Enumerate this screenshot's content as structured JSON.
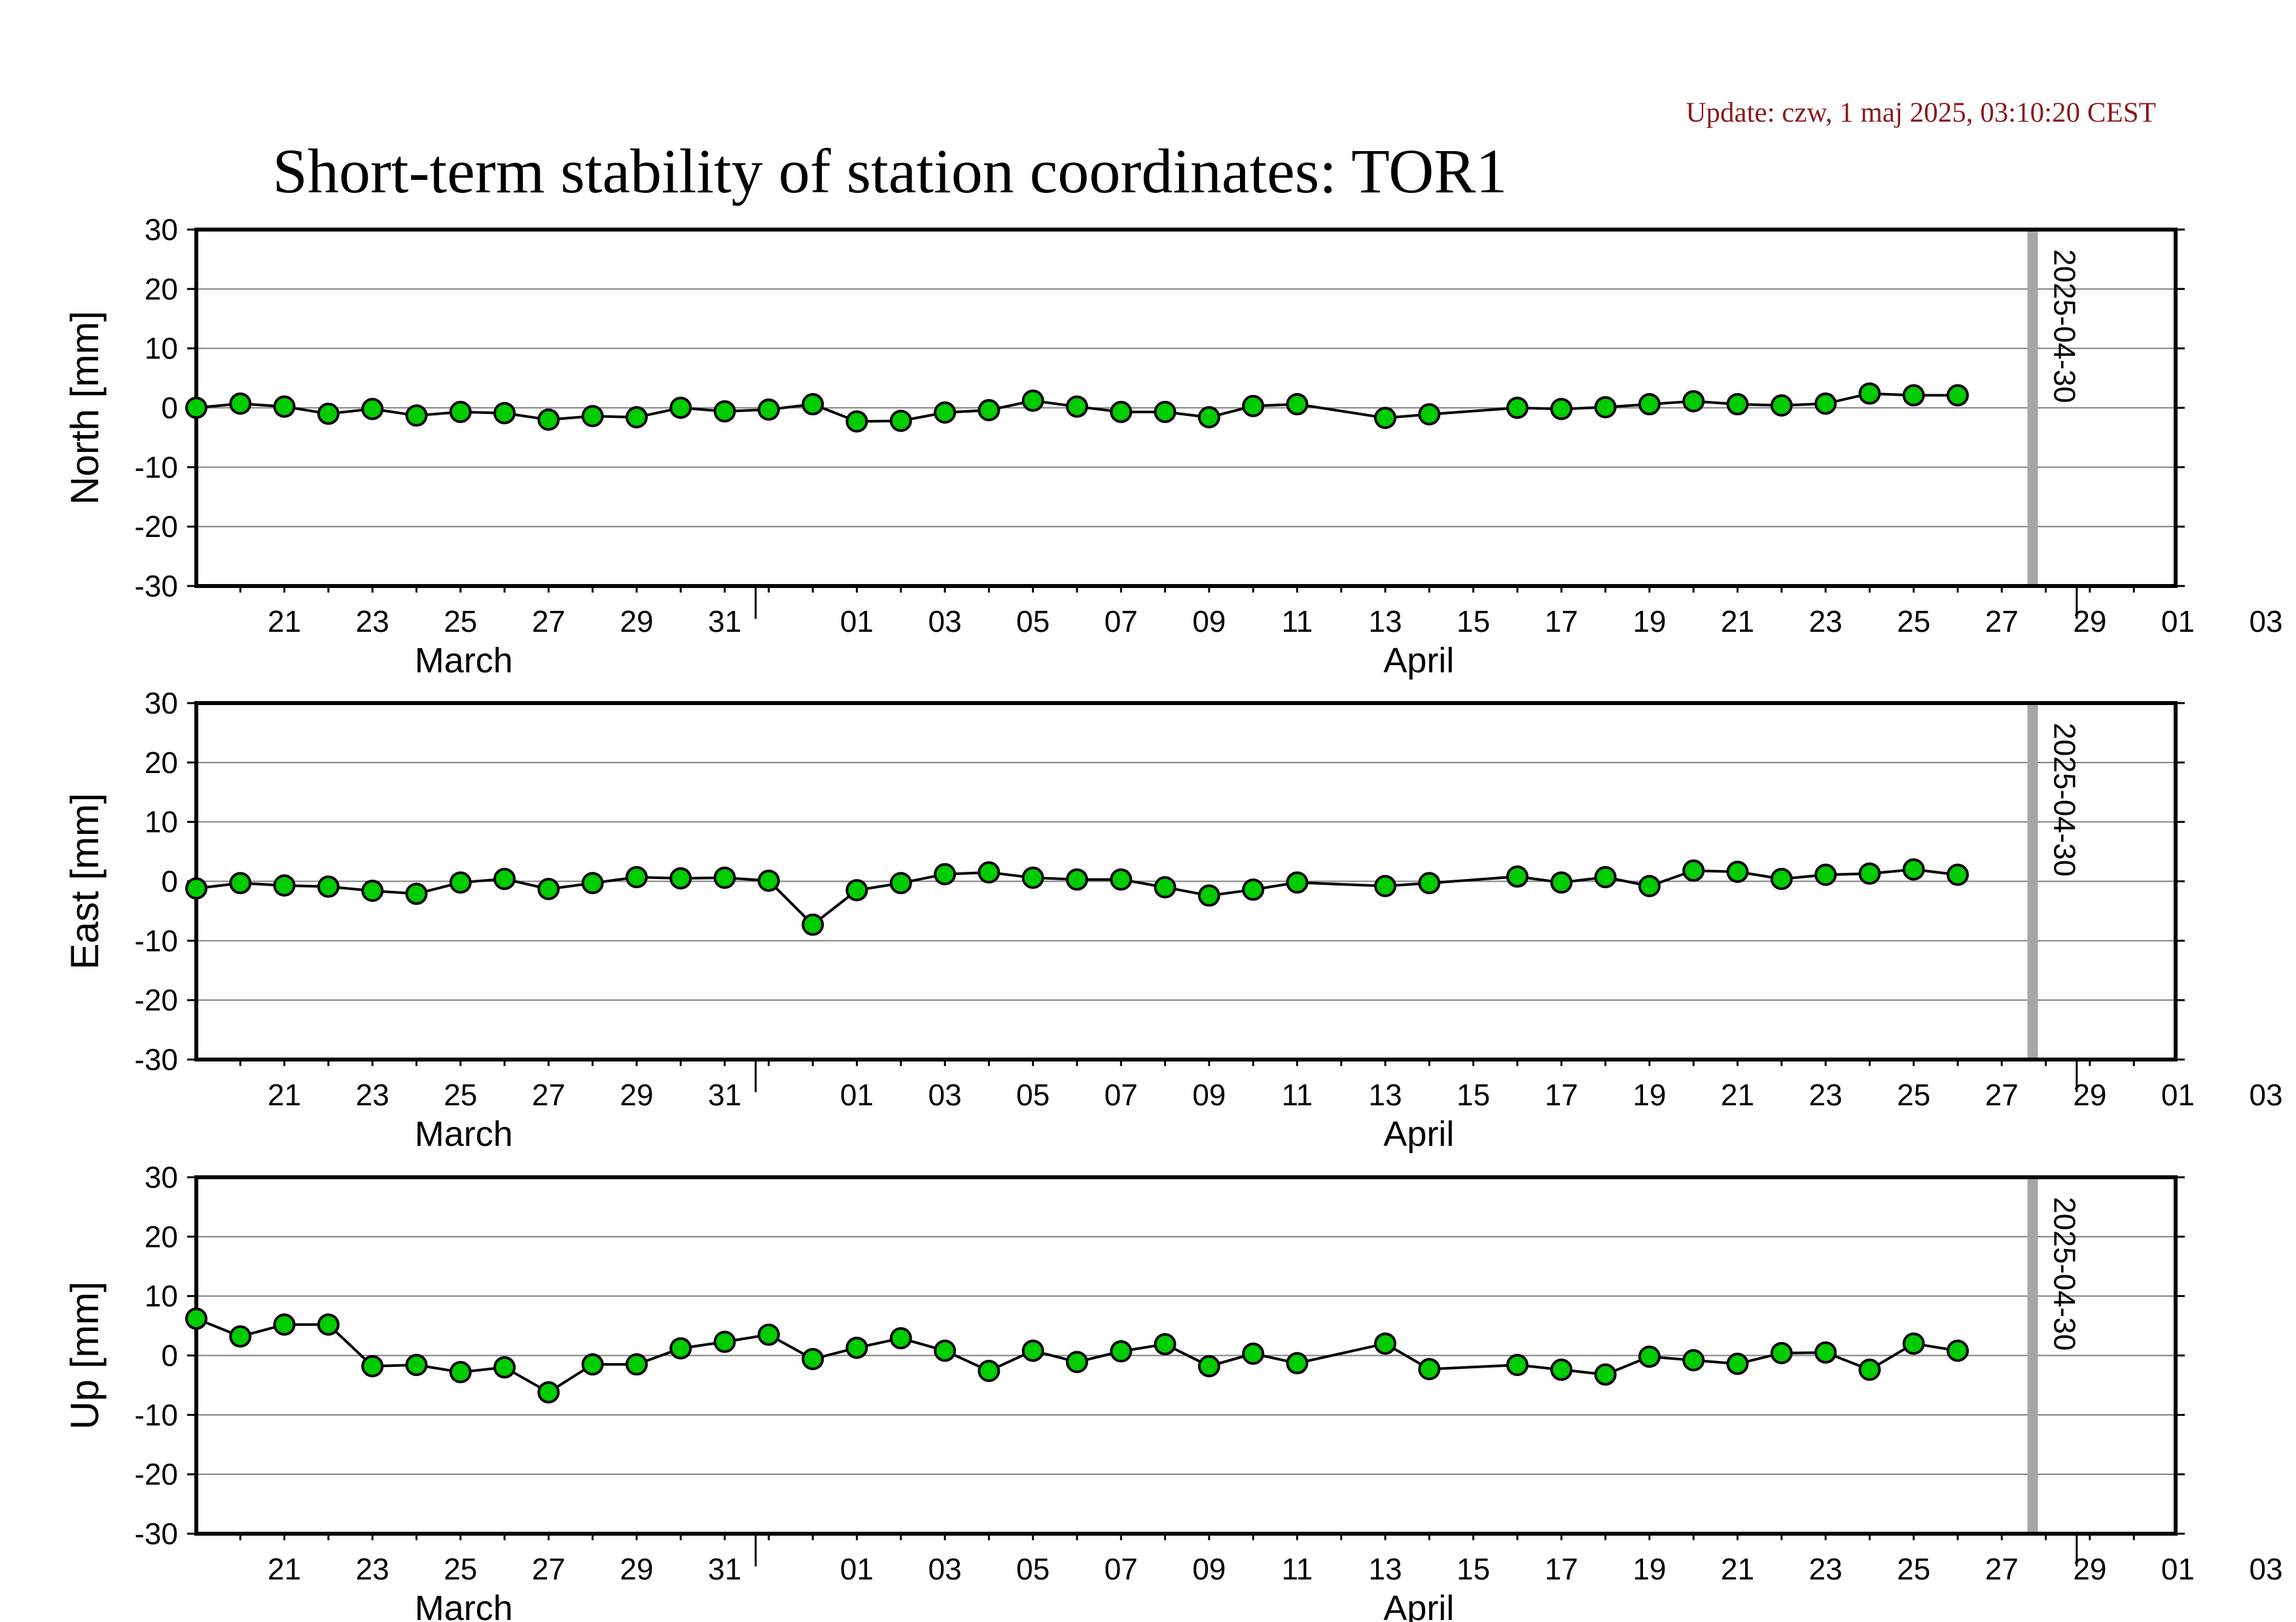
{
  "update_text": "Update: czw, 1 maj 2025, 03:10:20 CEST",
  "title": "Short-term stability of station coordinates: TOR1",
  "chart_data": [
    {
      "type": "line",
      "ylabel": "North [mm]",
      "ylim": [
        -30,
        30
      ],
      "yticks": [
        30,
        20,
        10,
        0,
        -10,
        -20,
        -30
      ],
      "grid": true,
      "xlim": [
        "2025-03-19",
        "2025-05-04"
      ],
      "xtick_labels": [
        "21",
        "23",
        "25",
        "27",
        "29",
        "31",
        "01",
        "03",
        "05",
        "07",
        "09",
        "11",
        "13",
        "15",
        "17",
        "19",
        "21",
        "23",
        "25",
        "27",
        "29",
        "01",
        "03"
      ],
      "months": [
        "March",
        "April"
      ],
      "marker_label": "2025-04-30",
      "point_color": "#00cc00",
      "x": [
        "2025-03-19",
        "2025-03-20",
        "2025-03-21",
        "2025-03-22",
        "2025-03-23",
        "2025-03-24",
        "2025-03-25",
        "2025-03-26",
        "2025-03-27",
        "2025-03-28",
        "2025-03-29",
        "2025-03-30",
        "2025-03-31",
        "2025-04-01",
        "2025-04-02",
        "2025-04-03",
        "2025-04-04",
        "2025-04-05",
        "2025-04-06",
        "2025-04-07",
        "2025-04-08",
        "2025-04-09",
        "2025-04-10",
        "2025-04-11",
        "2025-04-12",
        "2025-04-13",
        "2025-04-15",
        "2025-04-16",
        "2025-04-18",
        "2025-04-19",
        "2025-04-20",
        "2025-04-21",
        "2025-04-22",
        "2025-04-23",
        "2025-04-24",
        "2025-04-25",
        "2025-04-26",
        "2025-04-27",
        "2025-04-28"
      ],
      "values": [
        0,
        0.7,
        0.2,
        -1,
        -0.2,
        -1.3,
        -0.7,
        -0.9,
        -2,
        -1.4,
        -1.6,
        0,
        -0.6,
        -0.3,
        0.6,
        -2.3,
        -2.2,
        -0.8,
        -0.4,
        1.2,
        0.2,
        -0.7,
        -0.7,
        -1.6,
        0.3,
        0.6,
        -1.7,
        -1.1,
        0,
        -0.2,
        0.1,
        0.6,
        1.1,
        0.6,
        0.4,
        0.7,
        2.4,
        2.1,
        2.1
      ]
    },
    {
      "type": "line",
      "ylabel": "East [mm]",
      "ylim": [
        -30,
        30
      ],
      "yticks": [
        30,
        20,
        10,
        0,
        -10,
        -20,
        -30
      ],
      "grid": true,
      "xlim": [
        "2025-03-19",
        "2025-05-04"
      ],
      "xtick_labels": [
        "21",
        "23",
        "25",
        "27",
        "29",
        "31",
        "01",
        "03",
        "05",
        "07",
        "09",
        "11",
        "13",
        "15",
        "17",
        "19",
        "21",
        "23",
        "25",
        "27",
        "29",
        "01",
        "03"
      ],
      "months": [
        "March",
        "April"
      ],
      "marker_label": "2025-04-30",
      "point_color": "#00cc00",
      "x": [
        "2025-03-19",
        "2025-03-20",
        "2025-03-21",
        "2025-03-22",
        "2025-03-23",
        "2025-03-24",
        "2025-03-25",
        "2025-03-26",
        "2025-03-27",
        "2025-03-28",
        "2025-03-29",
        "2025-03-30",
        "2025-03-31",
        "2025-04-01",
        "2025-04-02",
        "2025-04-03",
        "2025-04-04",
        "2025-04-05",
        "2025-04-06",
        "2025-04-07",
        "2025-04-08",
        "2025-04-09",
        "2025-04-10",
        "2025-04-11",
        "2025-04-12",
        "2025-04-13",
        "2025-04-15",
        "2025-04-16",
        "2025-04-18",
        "2025-04-19",
        "2025-04-20",
        "2025-04-21",
        "2025-04-22",
        "2025-04-23",
        "2025-04-24",
        "2025-04-25",
        "2025-04-26",
        "2025-04-27",
        "2025-04-28"
      ],
      "values": [
        -1.2,
        -0.3,
        -0.7,
        -0.9,
        -1.6,
        -2.1,
        -0.2,
        0.4,
        -1.3,
        -0.3,
        0.7,
        0.5,
        0.6,
        0.1,
        -7.3,
        -1.5,
        -0.3,
        1.2,
        1.5,
        0.6,
        0.3,
        0.3,
        -1,
        -2.4,
        -1.4,
        -0.2,
        -0.8,
        -0.3,
        0.8,
        -0.2,
        0.7,
        -0.8,
        1.8,
        1.6,
        0.4,
        1.1,
        1.3,
        2,
        1.1
      ]
    },
    {
      "type": "line",
      "ylabel": "Up [mm]",
      "ylim": [
        -30,
        30
      ],
      "yticks": [
        30,
        20,
        10,
        0,
        -10,
        -20,
        -30
      ],
      "grid": true,
      "xlim": [
        "2025-03-19",
        "2025-05-04"
      ],
      "xtick_labels": [
        "21",
        "23",
        "25",
        "27",
        "29",
        "31",
        "01",
        "03",
        "05",
        "07",
        "09",
        "11",
        "13",
        "15",
        "17",
        "19",
        "21",
        "23",
        "25",
        "27",
        "29",
        "01",
        "03"
      ],
      "months": [
        "March",
        "April"
      ],
      "marker_label": "2025-04-30",
      "point_color": "#00cc00",
      "x": [
        "2025-03-19",
        "2025-03-20",
        "2025-03-21",
        "2025-03-22",
        "2025-03-23",
        "2025-03-24",
        "2025-03-25",
        "2025-03-26",
        "2025-03-27",
        "2025-03-28",
        "2025-03-29",
        "2025-03-30",
        "2025-03-31",
        "2025-04-01",
        "2025-04-02",
        "2025-04-03",
        "2025-04-04",
        "2025-04-05",
        "2025-04-06",
        "2025-04-07",
        "2025-04-08",
        "2025-04-09",
        "2025-04-10",
        "2025-04-11",
        "2025-04-12",
        "2025-04-13",
        "2025-04-15",
        "2025-04-16",
        "2025-04-18",
        "2025-04-19",
        "2025-04-20",
        "2025-04-21",
        "2025-04-22",
        "2025-04-23",
        "2025-04-24",
        "2025-04-25",
        "2025-04-26",
        "2025-04-27",
        "2025-04-28"
      ],
      "values": [
        6.2,
        3.2,
        5.2,
        5.2,
        -1.8,
        -1.6,
        -2.8,
        -2,
        -6.2,
        -1.5,
        -1.5,
        1.2,
        2.3,
        3.5,
        -0.6,
        1.3,
        2.9,
        0.8,
        -2.6,
        0.8,
        -1.1,
        0.7,
        1.9,
        -1.8,
        0.3,
        -1.3,
        2,
        -2.3,
        -1.6,
        -2.4,
        -3.2,
        -0.2,
        -0.8,
        -1.4,
        0.4,
        0.5,
        -2.4,
        2,
        0.8
      ]
    }
  ]
}
